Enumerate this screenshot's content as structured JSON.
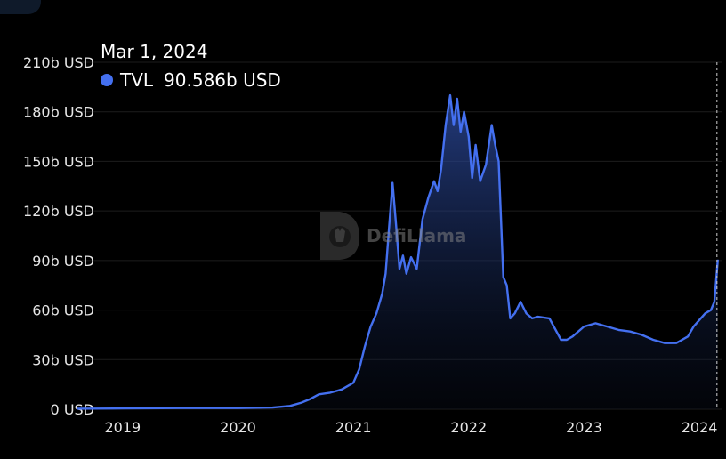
{
  "tooltip": {
    "date": "Mar 1, 2024",
    "series_name": "TVL",
    "value": "90.586b USD"
  },
  "watermark": {
    "text": "DefiLlama"
  },
  "colors": {
    "line": "#4470f0",
    "background": "#000000",
    "grid": "#1d1d1d",
    "text": "#e6e6e6"
  },
  "chart_data": {
    "type": "area",
    "title": "",
    "xlabel": "",
    "ylabel": "",
    "y_tick_labels": [
      "0 USD",
      "30b USD",
      "60b USD",
      "90b USD",
      "120b USD",
      "150b USD",
      "180b USD",
      "210b USD"
    ],
    "y_tick_values": [
      0,
      30,
      60,
      90,
      120,
      150,
      180,
      210
    ],
    "x_tick_labels": [
      "2019",
      "2020",
      "2021",
      "2022",
      "2023",
      "2024"
    ],
    "x_tick_values": [
      2019.0,
      2020.0,
      2021.0,
      2022.0,
      2023.0,
      2024.0
    ],
    "xlim": [
      2018.6,
      2024.2
    ],
    "ylim": [
      0,
      210
    ],
    "grid": true,
    "series": [
      {
        "name": "TVL",
        "unit": "b USD",
        "x": [
          2018.6,
          2019.0,
          2019.5,
          2020.0,
          2020.3,
          2020.45,
          2020.55,
          2020.62,
          2020.7,
          2020.8,
          2020.9,
          2021.0,
          2021.05,
          2021.1,
          2021.15,
          2021.2,
          2021.25,
          2021.28,
          2021.31,
          2021.34,
          2021.37,
          2021.4,
          2021.43,
          2021.46,
          2021.5,
          2021.55,
          2021.6,
          2021.65,
          2021.7,
          2021.73,
          2021.76,
          2021.8,
          2021.84,
          2021.87,
          2021.9,
          2021.93,
          2021.96,
          2022.0,
          2022.03,
          2022.06,
          2022.1,
          2022.15,
          2022.2,
          2022.23,
          2022.26,
          2022.3,
          2022.33,
          2022.36,
          2022.4,
          2022.45,
          2022.5,
          2022.55,
          2022.6,
          2022.7,
          2022.8,
          2022.85,
          2022.9,
          2023.0,
          2023.1,
          2023.2,
          2023.3,
          2023.4,
          2023.5,
          2023.6,
          2023.7,
          2023.8,
          2023.9,
          2023.95,
          2024.0,
          2024.05,
          2024.1,
          2024.13,
          2024.16
        ],
        "values": [
          0.3,
          0.5,
          0.7,
          0.7,
          1.0,
          2.0,
          4.0,
          6.0,
          9.0,
          10.0,
          12.0,
          16.0,
          24.0,
          38.0,
          50.0,
          58.0,
          70.0,
          82.0,
          110.0,
          137.0,
          112.0,
          85.0,
          93.0,
          82.0,
          92.0,
          85.0,
          115.0,
          128.0,
          138.0,
          132.0,
          145.0,
          172.0,
          190.0,
          172.0,
          188.0,
          168.0,
          180.0,
          165.0,
          140.0,
          160.0,
          138.0,
          148.0,
          172.0,
          160.0,
          150.0,
          80.0,
          75.0,
          55.0,
          58.0,
          65.0,
          58.0,
          55.0,
          56.0,
          55.0,
          42.0,
          42.0,
          44.0,
          50.0,
          52.0,
          50.0,
          48.0,
          47.0,
          45.0,
          42.0,
          40.0,
          40.0,
          44.0,
          50.0,
          54.0,
          58.0,
          60.0,
          65.0,
          90.586
        ]
      }
    ]
  }
}
